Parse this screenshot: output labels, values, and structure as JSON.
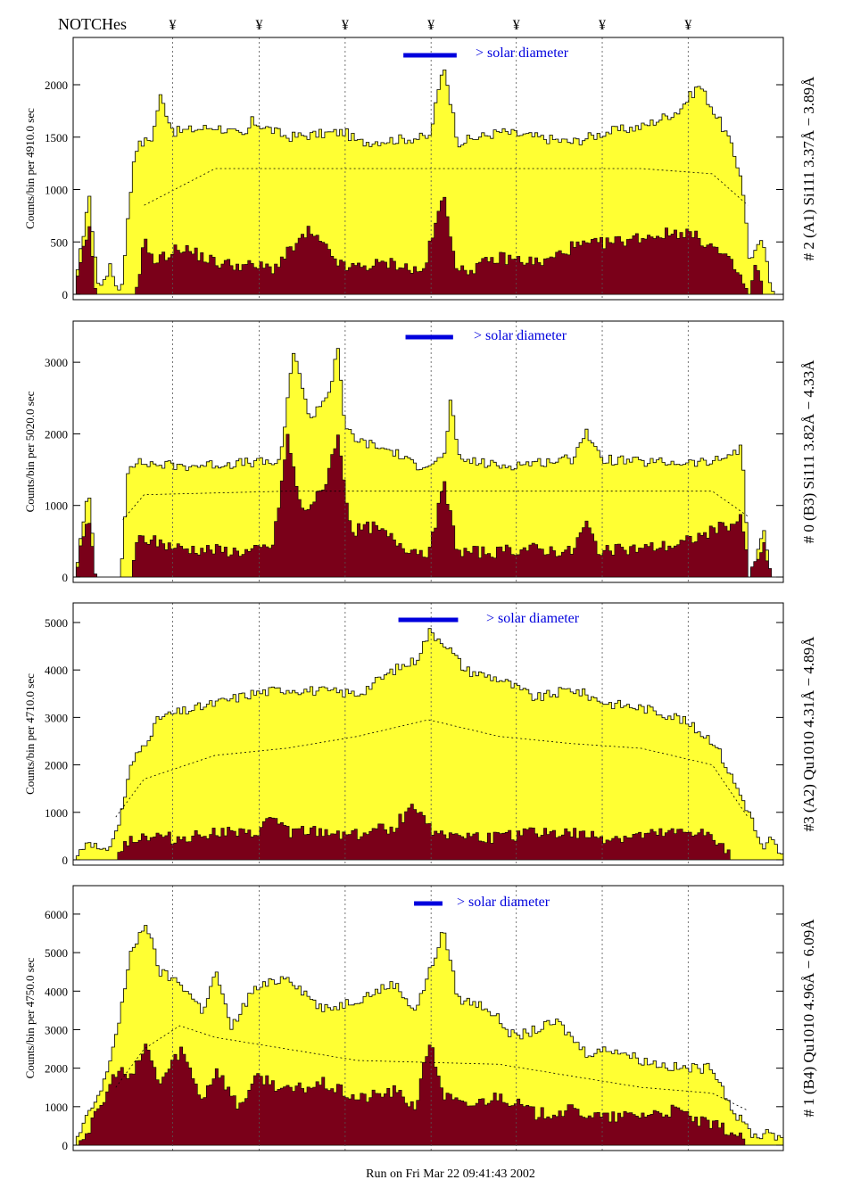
{
  "header": {
    "notches_label": "NOTCHes",
    "notch_symbol": "¥"
  },
  "footer": {
    "run_text": "Run on Fri Mar 22 09:41:43 2002"
  },
  "colors": {
    "total_fill": "#ffff33",
    "source_fill": "#7a0019",
    "bar_blue": "#0000dd",
    "axis": "#000000",
    "notch_line": "#555555"
  },
  "chart_data": [
    {
      "type": "area",
      "panel_id": "panel-1",
      "ylabel": "Counts/bin per   4910.0 sec",
      "right_label": "# 2 (A1) Si111  3.37Å − 3.89Å",
      "solar_text": "> solar diameter",
      "ylim": [
        0,
        2400
      ],
      "yticks": [
        0,
        500,
        1000,
        1500,
        2000
      ],
      "total_profile": [
        [
          0,
          0
        ],
        [
          0.02,
          950
        ],
        [
          0.035,
          0
        ],
        [
          0.04,
          150
        ],
        [
          0.05,
          250
        ],
        [
          0.065,
          0
        ],
        [
          0.085,
          1400
        ],
        [
          0.11,
          1500
        ],
        [
          0.12,
          1900
        ],
        [
          0.14,
          1550
        ],
        [
          0.2,
          1600
        ],
        [
          0.24,
          1500
        ],
        [
          0.25,
          1650
        ],
        [
          0.3,
          1500
        ],
        [
          0.38,
          1550
        ],
        [
          0.4,
          1450
        ],
        [
          0.5,
          1500
        ],
        [
          0.52,
          2200
        ],
        [
          0.54,
          1450
        ],
        [
          0.6,
          1550
        ],
        [
          0.65,
          1500
        ],
        [
          0.7,
          1450
        ],
        [
          0.75,
          1550
        ],
        [
          0.8,
          1600
        ],
        [
          0.85,
          1750
        ],
        [
          0.88,
          2000
        ],
        [
          0.9,
          1750
        ],
        [
          0.92,
          1500
        ],
        [
          0.94,
          1100
        ],
        [
          0.95,
          350
        ],
        [
          0.97,
          500
        ],
        [
          0.98,
          50
        ],
        [
          1,
          0
        ]
      ],
      "source_profile": [
        [
          0,
          0
        ],
        [
          0.02,
          650
        ],
        [
          0.03,
          0
        ],
        [
          0.085,
          0
        ],
        [
          0.1,
          550
        ],
        [
          0.11,
          300
        ],
        [
          0.15,
          450
        ],
        [
          0.2,
          300
        ],
        [
          0.28,
          250
        ],
        [
          0.33,
          600
        ],
        [
          0.38,
          250
        ],
        [
          0.45,
          300
        ],
        [
          0.49,
          200
        ],
        [
          0.52,
          950
        ],
        [
          0.54,
          200
        ],
        [
          0.6,
          350
        ],
        [
          0.66,
          300
        ],
        [
          0.7,
          450
        ],
        [
          0.76,
          500
        ],
        [
          0.8,
          550
        ],
        [
          0.86,
          600
        ],
        [
          0.9,
          450
        ],
        [
          0.93,
          250
        ],
        [
          0.95,
          0
        ],
        [
          0.96,
          300
        ],
        [
          0.97,
          0
        ],
        [
          1,
          0
        ]
      ],
      "model_profile": [
        [
          0.1,
          850
        ],
        [
          0.2,
          1200
        ],
        [
          0.4,
          1200
        ],
        [
          0.6,
          1200
        ],
        [
          0.8,
          1200
        ],
        [
          0.9,
          1150
        ],
        [
          0.95,
          850
        ]
      ]
    },
    {
      "type": "area",
      "panel_id": "panel-2",
      "ylabel": "Counts/bin per   5020.0 sec",
      "right_label": "# 0 (B3) Si111  3.82Å − 4.33Å",
      "solar_text": "> solar diameter",
      "ylim": [
        0,
        3500
      ],
      "yticks": [
        0,
        1000,
        2000,
        3000
      ],
      "total_profile": [
        [
          0,
          0
        ],
        [
          0.02,
          1200
        ],
        [
          0.03,
          0
        ],
        [
          0.065,
          0
        ],
        [
          0.075,
          1500
        ],
        [
          0.08,
          1600
        ],
        [
          0.15,
          1550
        ],
        [
          0.25,
          1600
        ],
        [
          0.29,
          1600
        ],
        [
          0.3,
          2500
        ],
        [
          0.31,
          3200
        ],
        [
          0.33,
          2200
        ],
        [
          0.36,
          2600
        ],
        [
          0.37,
          3300
        ],
        [
          0.38,
          2100
        ],
        [
          0.4,
          1900
        ],
        [
          0.45,
          1750
        ],
        [
          0.48,
          1550
        ],
        [
          0.52,
          1650
        ],
        [
          0.53,
          2500
        ],
        [
          0.54,
          1650
        ],
        [
          0.6,
          1550
        ],
        [
          0.65,
          1600
        ],
        [
          0.7,
          1650
        ],
        [
          0.72,
          2050
        ],
        [
          0.74,
          1650
        ],
        [
          0.8,
          1600
        ],
        [
          0.9,
          1600
        ],
        [
          0.94,
          1800
        ],
        [
          0.95,
          0
        ],
        [
          0.97,
          650
        ],
        [
          0.98,
          0
        ],
        [
          1,
          0
        ]
      ],
      "source_profile": [
        [
          0,
          0
        ],
        [
          0.02,
          850
        ],
        [
          0.03,
          0
        ],
        [
          0.08,
          0
        ],
        [
          0.09,
          550
        ],
        [
          0.15,
          400
        ],
        [
          0.25,
          350
        ],
        [
          0.28,
          450
        ],
        [
          0.3,
          1950
        ],
        [
          0.32,
          900
        ],
        [
          0.35,
          1200
        ],
        [
          0.37,
          2000
        ],
        [
          0.39,
          650
        ],
        [
          0.42,
          700
        ],
        [
          0.47,
          400
        ],
        [
          0.5,
          350
        ],
        [
          0.52,
          1300
        ],
        [
          0.54,
          350
        ],
        [
          0.6,
          350
        ],
        [
          0.64,
          400
        ],
        [
          0.7,
          350
        ],
        [
          0.72,
          750
        ],
        [
          0.74,
          350
        ],
        [
          0.85,
          450
        ],
        [
          0.9,
          650
        ],
        [
          0.94,
          800
        ],
        [
          0.95,
          0
        ],
        [
          0.97,
          450
        ],
        [
          0.98,
          0
        ],
        [
          1,
          0
        ]
      ],
      "model_profile": [
        [
          0.07,
          800
        ],
        [
          0.1,
          1150
        ],
        [
          0.3,
          1200
        ],
        [
          0.5,
          1200
        ],
        [
          0.7,
          1200
        ],
        [
          0.9,
          1200
        ],
        [
          0.95,
          850
        ]
      ]
    },
    {
      "type": "area",
      "panel_id": "panel-3",
      "ylabel": "Counts/bin per   4710.0 sec",
      "right_label": "#3 (A2) Qu1010  4.31Å − 4.89Å",
      "solar_text": "> solar diameter",
      "ylim": [
        0,
        5300
      ],
      "yticks": [
        0,
        1000,
        2000,
        3000,
        4000,
        5000
      ],
      "total_profile": [
        [
          0,
          0
        ],
        [
          0.02,
          450
        ],
        [
          0.04,
          100
        ],
        [
          0.06,
          600
        ],
        [
          0.08,
          2000
        ],
        [
          0.12,
          3000
        ],
        [
          0.2,
          3300
        ],
        [
          0.25,
          3500
        ],
        [
          0.3,
          3600
        ],
        [
          0.4,
          3500
        ],
        [
          0.45,
          4000
        ],
        [
          0.48,
          4200
        ],
        [
          0.5,
          4800
        ],
        [
          0.52,
          4600
        ],
        [
          0.55,
          4000
        ],
        [
          0.6,
          3800
        ],
        [
          0.65,
          3400
        ],
        [
          0.7,
          3600
        ],
        [
          0.75,
          3300
        ],
        [
          0.8,
          3200
        ],
        [
          0.85,
          3000
        ],
        [
          0.9,
          2500
        ],
        [
          0.95,
          1000
        ],
        [
          0.97,
          150
        ],
        [
          0.98,
          450
        ],
        [
          1,
          0
        ]
      ],
      "source_profile": [
        [
          0,
          0
        ],
        [
          0.06,
          0
        ],
        [
          0.07,
          400
        ],
        [
          0.1,
          500
        ],
        [
          0.15,
          450
        ],
        [
          0.2,
          600
        ],
        [
          0.25,
          500
        ],
        [
          0.28,
          900
        ],
        [
          0.3,
          600
        ],
        [
          0.4,
          550
        ],
        [
          0.45,
          700
        ],
        [
          0.48,
          1200
        ],
        [
          0.5,
          650
        ],
        [
          0.55,
          500
        ],
        [
          0.6,
          450
        ],
        [
          0.65,
          600
        ],
        [
          0.7,
          550
        ],
        [
          0.75,
          450
        ],
        [
          0.8,
          500
        ],
        [
          0.85,
          550
        ],
        [
          0.88,
          600
        ],
        [
          0.9,
          400
        ],
        [
          0.93,
          0
        ],
        [
          1,
          0
        ]
      ],
      "model_profile": [
        [
          0.06,
          900
        ],
        [
          0.1,
          1700
        ],
        [
          0.2,
          2200
        ],
        [
          0.3,
          2350
        ],
        [
          0.4,
          2600
        ],
        [
          0.5,
          2950
        ],
        [
          0.6,
          2600
        ],
        [
          0.7,
          2450
        ],
        [
          0.8,
          2350
        ],
        [
          0.9,
          2000
        ],
        [
          0.95,
          900
        ]
      ]
    },
    {
      "type": "area",
      "panel_id": "panel-4",
      "ylabel": "Counts/bin per   4750.0 sec",
      "right_label": "# 1 (B4) Qu1010 4.96Å − 6.09Å",
      "solar_text": "> solar diameter",
      "ylim": [
        0,
        6600
      ],
      "yticks": [
        0,
        1000,
        2000,
        3000,
        4000,
        5000,
        6000
      ],
      "total_profile": [
        [
          0,
          0
        ],
        [
          0.02,
          800
        ],
        [
          0.04,
          1500
        ],
        [
          0.06,
          3000
        ],
        [
          0.08,
          5000
        ],
        [
          0.1,
          5800
        ],
        [
          0.12,
          4500
        ],
        [
          0.15,
          4200
        ],
        [
          0.18,
          3500
        ],
        [
          0.2,
          4500
        ],
        [
          0.22,
          3000
        ],
        [
          0.25,
          4000
        ],
        [
          0.3,
          4400
        ],
        [
          0.35,
          3500
        ],
        [
          0.4,
          3800
        ],
        [
          0.45,
          4200
        ],
        [
          0.48,
          3500
        ],
        [
          0.5,
          4500
        ],
        [
          0.52,
          5600
        ],
        [
          0.54,
          3800
        ],
        [
          0.58,
          3600
        ],
        [
          0.62,
          2800
        ],
        [
          0.68,
          3200
        ],
        [
          0.72,
          2400
        ],
        [
          0.76,
          2500
        ],
        [
          0.8,
          2200
        ],
        [
          0.85,
          2000
        ],
        [
          0.9,
          2000
        ],
        [
          0.93,
          800
        ],
        [
          0.96,
          200
        ],
        [
          0.98,
          400
        ],
        [
          1,
          0
        ]
      ],
      "source_profile": [
        [
          0,
          0
        ],
        [
          0.02,
          400
        ],
        [
          0.04,
          1100
        ],
        [
          0.06,
          2000
        ],
        [
          0.08,
          1700
        ],
        [
          0.1,
          2600
        ],
        [
          0.12,
          1600
        ],
        [
          0.15,
          2500
        ],
        [
          0.18,
          1200
        ],
        [
          0.2,
          2000
        ],
        [
          0.23,
          1000
        ],
        [
          0.26,
          1800
        ],
        [
          0.3,
          1400
        ],
        [
          0.35,
          1600
        ],
        [
          0.4,
          1200
        ],
        [
          0.45,
          1400
        ],
        [
          0.48,
          1000
        ],
        [
          0.5,
          2700
        ],
        [
          0.52,
          1300
        ],
        [
          0.55,
          1000
        ],
        [
          0.6,
          1300
        ],
        [
          0.65,
          800
        ],
        [
          0.7,
          900
        ],
        [
          0.75,
          700
        ],
        [
          0.8,
          800
        ],
        [
          0.85,
          900
        ],
        [
          0.88,
          600
        ],
        [
          0.92,
          400
        ],
        [
          0.95,
          0
        ],
        [
          1,
          0
        ]
      ],
      "model_profile": [
        [
          0.06,
          1500
        ],
        [
          0.1,
          2500
        ],
        [
          0.15,
          3100
        ],
        [
          0.2,
          2800
        ],
        [
          0.3,
          2500
        ],
        [
          0.4,
          2200
        ],
        [
          0.5,
          2150
        ],
        [
          0.6,
          2100
        ],
        [
          0.7,
          1800
        ],
        [
          0.8,
          1500
        ],
        [
          0.9,
          1350
        ],
        [
          0.95,
          900
        ]
      ]
    }
  ]
}
